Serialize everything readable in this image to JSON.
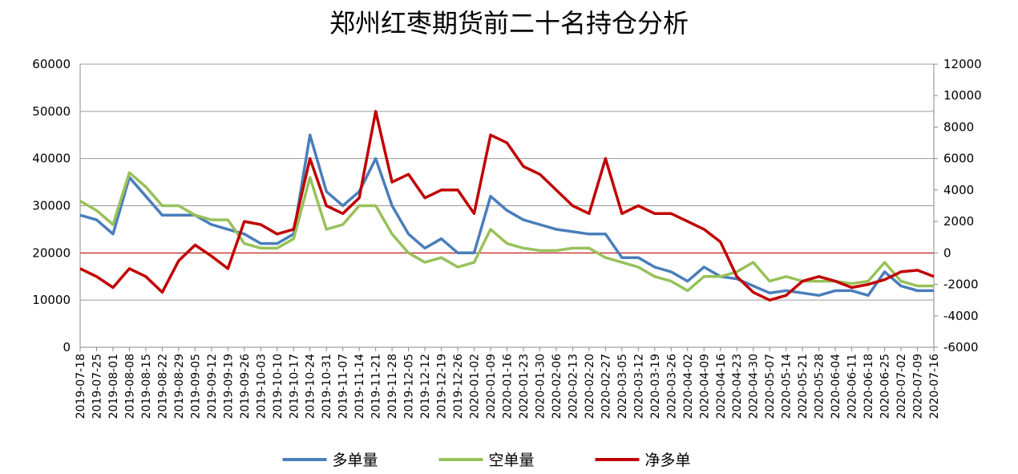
{
  "chart_data": {
    "type": "line",
    "title": "郑州红枣期货前二十名持仓分析",
    "categories": [
      "2019-07-18",
      "2019-07-25",
      "2019-08-01",
      "2019-08-08",
      "2019-08-15",
      "2019-08-22",
      "2019-08-29",
      "2019-09-05",
      "2019-09-12",
      "2019-09-19",
      "2019-09-26",
      "2019-10-03",
      "2019-10-10",
      "2019-10-17",
      "2019-10-24",
      "2019-10-31",
      "2019-11-07",
      "2019-11-14",
      "2019-11-21",
      "2019-11-28",
      "2019-12-05",
      "2019-12-12",
      "2019-12-19",
      "2019-12-26",
      "2020-01-02",
      "2020-01-09",
      "2020-01-16",
      "2020-01-23",
      "2020-01-30",
      "2020-02-06",
      "2020-02-13",
      "2020-02-20",
      "2020-02-27",
      "2020-03-05",
      "2020-03-12",
      "2020-03-19",
      "2020-03-26",
      "2020-04-02",
      "2020-04-09",
      "2020-04-16",
      "2020-04-23",
      "2020-04-30",
      "2020-05-07",
      "2020-05-14",
      "2020-05-21",
      "2020-05-28",
      "2020-06-04",
      "2020-06-11",
      "2020-06-18",
      "2020-06-25",
      "2020-07-02",
      "2020-07-09",
      "2020-07-16"
    ],
    "series": [
      {
        "name": "多单量",
        "color": "#4a7ebb",
        "values": [
          28000,
          27000,
          24000,
          36000,
          32000,
          28000,
          28000,
          28000,
          26000,
          25000,
          24000,
          22000,
          22000,
          24000,
          45000,
          33000,
          30000,
          33000,
          40000,
          30000,
          24000,
          21000,
          23000,
          20000,
          20000,
          32000,
          29000,
          27000,
          26000,
          25000,
          24500,
          24000,
          24000,
          19000,
          19000,
          17000,
          16000,
          14000,
          17000,
          15000,
          14500,
          13000,
          11500,
          12000,
          11500,
          11000,
          12000,
          12000,
          11000,
          16000,
          13000,
          12000,
          12000
        ]
      },
      {
        "name": "空单量",
        "color": "#98c15a",
        "values": [
          31000,
          29000,
          26000,
          37000,
          34000,
          30000,
          30000,
          28000,
          27000,
          27000,
          22000,
          21000,
          21000,
          23000,
          36000,
          25000,
          26000,
          30000,
          30000,
          24000,
          20000,
          18000,
          19000,
          17000,
          18000,
          25000,
          22000,
          21000,
          20500,
          20500,
          21000,
          21000,
          19000,
          18000,
          17000,
          15000,
          14000,
          12000,
          15000,
          15000,
          16000,
          18000,
          14000,
          15000,
          14000,
          14000,
          14000,
          13500,
          14000,
          18000,
          14000,
          13000,
          13000
        ]
      },
      {
        "name": "净多单",
        "color": "#c00000",
        "axis": "y2",
        "values": [
          -1000,
          -1500,
          -2200,
          -1000,
          -1500,
          -2500,
          -500,
          500,
          -200,
          -1000,
          2000,
          1800,
          1200,
          1500,
          6000,
          3000,
          2500,
          3500,
          9000,
          4500,
          5000,
          3500,
          4000,
          4000,
          2500,
          7500,
          7000,
          5500,
          5000,
          4000,
          3000,
          2500,
          6000,
          2500,
          3000,
          2500,
          2500,
          2000,
          1500,
          700,
          -1500,
          -2500,
          -3000,
          -2700,
          -1800,
          -1500,
          -1800,
          -2200,
          -2000,
          -1700,
          -1200,
          -1100,
          -1500
        ]
      }
    ],
    "ylim": [
      0,
      60000
    ],
    "yticks": [
      0,
      10000,
      20000,
      30000,
      40000,
      50000,
      60000
    ],
    "y2lim": [
      -6000,
      12000
    ],
    "y2ticks": [
      -6000,
      -4000,
      -2000,
      0,
      2000,
      4000,
      6000,
      8000,
      10000,
      12000
    ],
    "grid": true,
    "legend": "bottom"
  }
}
